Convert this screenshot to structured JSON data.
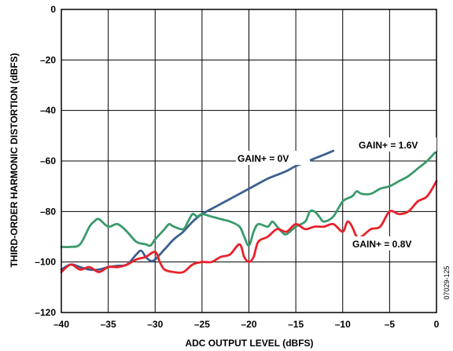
{
  "chart_data": {
    "type": "line",
    "title": "",
    "xlabel": "ADC OUTPUT LEVEL (dBFS)",
    "ylabel": "THIRD-ORDER HARMONIC DISTORTION (dBFS)",
    "xlim": [
      -40,
      0
    ],
    "ylim": [
      -120,
      0
    ],
    "xticks": [
      -40,
      -35,
      -30,
      -25,
      -20,
      -15,
      -10,
      -5,
      0
    ],
    "yticks": [
      0,
      -20,
      -40,
      -60,
      -80,
      -100,
      -120
    ],
    "xtick_labels": [
      "–40",
      "–35",
      "–30",
      "–25",
      "–20",
      "–15",
      "–10",
      "–5",
      "0"
    ],
    "ytick_labels": [
      "0",
      "–20",
      "–40",
      "–60",
      "–80",
      "–100",
      "–120"
    ],
    "grid": true,
    "legend": "none",
    "figure_id": "07029-125",
    "series": [
      {
        "label": "GAIN+ = 0V",
        "color": "#3d5f8f",
        "x": [
          -40,
          -39,
          -38,
          -37,
          -36,
          -35,
          -34,
          -33,
          -32,
          -31.5,
          -31,
          -30.5,
          -30,
          -29,
          -28,
          -27,
          -26,
          -25,
          -24,
          -23,
          -22,
          -21,
          -20,
          -19,
          -18,
          -17,
          -16,
          -15,
          -14,
          -13,
          -12,
          -11
        ],
        "y": [
          -103,
          -101,
          -102,
          -103,
          -103,
          -102,
          -101.5,
          -101,
          -97,
          -95.5,
          -98,
          -99.5,
          -99,
          -95,
          -91,
          -88,
          -84,
          -81,
          -79,
          -77,
          -75,
          -73,
          -71,
          -69,
          -67,
          -65.5,
          -64,
          -62,
          -60.5,
          -59,
          -57.5,
          -56
        ]
      },
      {
        "label": "GAIN+ = 1.6V",
        "color": "#3a9a6b",
        "x": [
          -40,
          -39,
          -38,
          -37,
          -36.5,
          -36,
          -35,
          -34,
          -33,
          -32,
          -31,
          -30.5,
          -30,
          -29.5,
          -29,
          -28.5,
          -28,
          -27,
          -26.5,
          -26,
          -25.5,
          -25,
          -24,
          -23,
          -22,
          -21,
          -20.5,
          -20,
          -19.5,
          -19,
          -18,
          -17.5,
          -17,
          -16.5,
          -16,
          -15,
          -14,
          -13.5,
          -13,
          -12.5,
          -12,
          -11,
          -10,
          -9,
          -8.5,
          -8,
          -7,
          -6,
          -5,
          -4,
          -3,
          -2,
          -1,
          0
        ],
        "y": [
          -94,
          -94,
          -93,
          -86,
          -84,
          -83,
          -86,
          -85,
          -88,
          -92,
          -93,
          -93.5,
          -91,
          -89,
          -87,
          -85,
          -86,
          -87,
          -84,
          -81,
          -82,
          -81,
          -82,
          -83,
          -84,
          -86,
          -90,
          -93.5,
          -88,
          -85,
          -86,
          -84,
          -86,
          -88,
          -89,
          -86,
          -84,
          -80,
          -80,
          -82,
          -84,
          -82,
          -76,
          -74,
          -72,
          -73,
          -73,
          -71,
          -70,
          -68,
          -66,
          -63,
          -60,
          -56
        ]
      },
      {
        "label": "GAIN+ = 0.8V",
        "color": "#e8212a",
        "x": [
          -40,
          -39,
          -38,
          -37,
          -36,
          -35,
          -34,
          -33,
          -32,
          -31,
          -30,
          -29.5,
          -29,
          -28,
          -27,
          -26,
          -25,
          -24,
          -23,
          -22,
          -21,
          -20.5,
          -20,
          -19.5,
          -19,
          -18,
          -17,
          -16,
          -15,
          -14,
          -13,
          -12,
          -11,
          -10,
          -9.5,
          -9,
          -8.5,
          -8,
          -7,
          -6,
          -5,
          -4,
          -3,
          -2,
          -1,
          0
        ],
        "y": [
          -104,
          -101,
          -103,
          -102,
          -104,
          -102,
          -102,
          -101,
          -99,
          -98,
          -96,
          -100,
          -103,
          -104,
          -104,
          -101,
          -100,
          -100,
          -98,
          -97,
          -93,
          -98,
          -100,
          -98,
          -92,
          -90,
          -87,
          -88,
          -85,
          -87,
          -86,
          -86,
          -85,
          -88,
          -84,
          -86,
          -90,
          -90,
          -87,
          -86,
          -80,
          -81,
          -80,
          -76,
          -74,
          -68
        ]
      }
    ],
    "annotations": [
      {
        "text": "GAIN+ = 0V",
        "series": 0
      },
      {
        "text": "GAIN+ = 1.6V",
        "series": 1
      },
      {
        "text": "GAIN+ = 0.8V",
        "series": 2
      }
    ]
  }
}
